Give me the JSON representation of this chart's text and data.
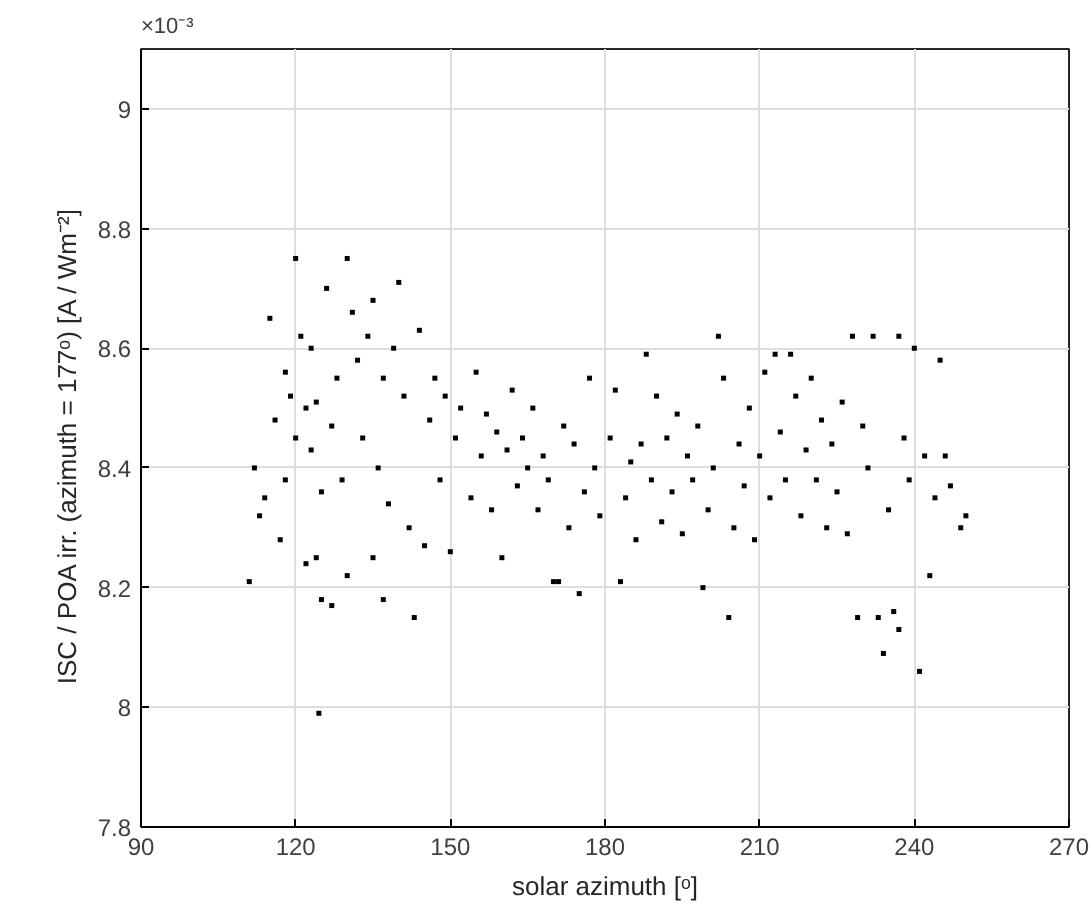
{
  "chart_data": {
    "type": "scatter",
    "xlabel": "solar azimuth [ᵒ]",
    "ylabel": "ISC / POA irr. (azimuth = 177ᵒ)   [A / Wm⁻²]",
    "annotations": [
      "×10⁻³"
    ],
    "xlim": [
      90,
      270
    ],
    "xticks": [
      90,
      120,
      150,
      180,
      210,
      240,
      270
    ],
    "ylim": [
      7.8,
      9.1
    ],
    "yticks": [
      7.8,
      8,
      8.2,
      8.4,
      8.6,
      8.8,
      9
    ],
    "grid": true,
    "marker": "square",
    "series": [
      {
        "color": "#000000",
        "x": [
          111,
          112,
          113,
          114,
          115,
          117,
          118,
          120,
          122,
          124,
          124.5,
          125,
          127,
          130,
          130,
          135,
          137,
          140,
          143,
          145,
          150,
          160,
          170,
          171,
          175,
          177,
          183,
          188,
          199,
          202,
          204,
          213,
          216,
          228,
          229,
          232,
          233,
          234,
          236,
          237,
          237,
          240,
          241,
          243,
          245,
          246,
          247,
          249,
          250,
          116,
          118,
          119,
          120,
          121,
          122,
          123,
          123,
          124,
          125,
          126,
          127,
          128,
          129,
          131,
          132,
          133,
          134,
          135,
          136,
          137,
          138,
          139,
          141,
          142,
          144,
          146,
          147,
          148,
          149,
          151,
          152,
          154,
          155,
          156,
          157,
          158,
          159,
          161,
          162,
          163,
          164,
          165,
          166,
          167,
          168,
          169,
          172,
          173,
          174,
          176,
          178,
          179,
          181,
          182,
          184,
          185,
          186,
          187,
          189,
          190,
          191,
          192,
          193,
          194,
          195,
          196,
          197,
          198,
          200,
          201,
          203,
          205,
          206,
          207,
          208,
          209,
          210,
          211,
          212,
          214,
          215,
          217,
          218,
          219,
          220,
          221,
          222,
          223,
          224,
          225,
          226,
          227,
          230,
          231,
          235,
          238,
          239,
          242,
          244
        ],
        "values": [
          8.21,
          8.4,
          8.32,
          8.35,
          8.65,
          8.28,
          8.56,
          8.75,
          8.24,
          8.25,
          7.99,
          8.18,
          8.17,
          8.75,
          8.22,
          8.25,
          8.18,
          8.71,
          8.15,
          8.27,
          8.26,
          8.25,
          8.21,
          8.21,
          8.19,
          8.55,
          8.21,
          8.59,
          8.2,
          8.62,
          8.15,
          8.59,
          8.59,
          8.62,
          8.15,
          8.62,
          8.15,
          8.09,
          8.16,
          8.13,
          8.62,
          8.6,
          8.06,
          8.22,
          8.58,
          8.42,
          8.37,
          8.3,
          8.32,
          8.48,
          8.38,
          8.52,
          8.45,
          8.62,
          8.5,
          8.43,
          8.6,
          8.51,
          8.36,
          8.7,
          8.47,
          8.55,
          8.38,
          8.66,
          8.58,
          8.45,
          8.62,
          8.68,
          8.4,
          8.55,
          8.34,
          8.6,
          8.52,
          8.3,
          8.63,
          8.48,
          8.55,
          8.38,
          8.52,
          8.45,
          8.5,
          8.35,
          8.56,
          8.42,
          8.49,
          8.33,
          8.46,
          8.43,
          8.53,
          8.37,
          8.45,
          8.4,
          8.5,
          8.33,
          8.42,
          8.38,
          8.47,
          8.3,
          8.44,
          8.36,
          8.4,
          8.32,
          8.45,
          8.53,
          8.35,
          8.41,
          8.28,
          8.44,
          8.38,
          8.52,
          8.31,
          8.45,
          8.36,
          8.49,
          8.29,
          8.42,
          8.38,
          8.47,
          8.33,
          8.4,
          8.55,
          8.3,
          8.44,
          8.37,
          8.5,
          8.28,
          8.42,
          8.56,
          8.35,
          8.46,
          8.38,
          8.52,
          8.32,
          8.43,
          8.55,
          8.38,
          8.48,
          8.3,
          8.44,
          8.36,
          8.51,
          8.29,
          8.47,
          8.4,
          8.33,
          8.45,
          8.38,
          8.42,
          8.35
        ]
      }
    ]
  }
}
